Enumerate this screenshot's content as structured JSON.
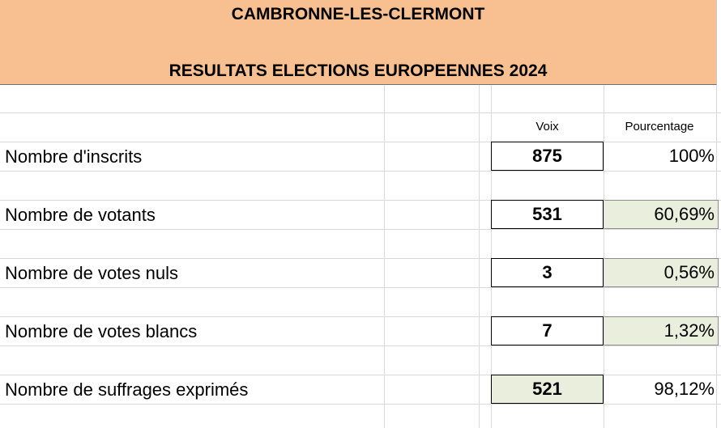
{
  "header": {
    "commune": "CAMBRONNE-LES-CLERMONT",
    "title": "RESULTATS ELECTIONS EUROPEENNES 2024"
  },
  "columns": {
    "voix": "Voix",
    "pourcentage": "Pourcentage"
  },
  "rows": [
    {
      "label": "Nombre d'inscrits",
      "voix": "875",
      "pourcentage": "100%"
    },
    {
      "label": "Nombre de votants",
      "voix": "531",
      "pourcentage": "60,69%"
    },
    {
      "label": "Nombre de votes nuls",
      "voix": "3",
      "pourcentage": "0,56%"
    },
    {
      "label": "Nombre de votes blancs",
      "voix": "7",
      "pourcentage": "1,32%"
    },
    {
      "label": "Nombre de suffrages exprimés",
      "voix": "521",
      "pourcentage": "98,12%"
    }
  ],
  "colors": {
    "header_bg": "#f8bf91",
    "highlight_bg": "#e9eedd"
  }
}
